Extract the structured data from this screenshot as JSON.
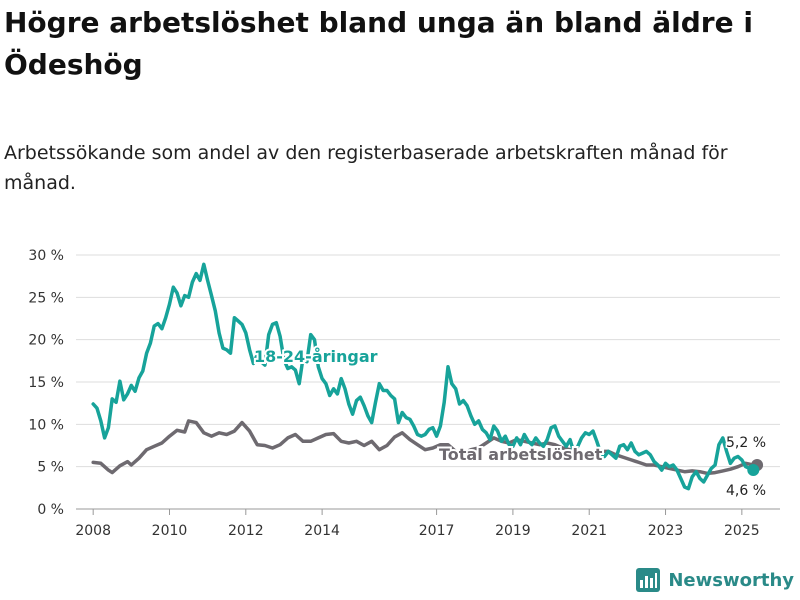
{
  "title": "Högre arbetslöshet bland unga än bland äldre i Ödeshög",
  "subtitle": "Arbetssökande som andel av den registerbaserade arbetskraften månad för månad.",
  "brand": {
    "name": "Newsworthy",
    "logo_icon": "bar-chart-icon",
    "color": "#2a8a88"
  },
  "chart_data": {
    "type": "line",
    "ylim": [
      0,
      30
    ],
    "y_ticks": [
      0,
      5,
      10,
      15,
      20,
      25,
      30
    ],
    "y_tick_labels": [
      "0 %",
      "5 %",
      "10 %",
      "15 %",
      "20 %",
      "25 %",
      "30 %"
    ],
    "x_ticks": [
      2008,
      2010,
      2012,
      2014,
      2017,
      2019,
      2021,
      2023,
      2025
    ],
    "x_tick_labels": [
      "2008",
      "2010",
      "2012",
      "2014",
      "2017",
      "2019",
      "2021",
      "2023",
      "2025"
    ],
    "grid": "horizontal",
    "series": [
      {
        "name": "Total arbetslöshet",
        "color": "#6e6a70",
        "end_label": "5,2 %",
        "points": [
          [
            2008.0,
            5.5
          ],
          [
            2008.2,
            5.4
          ],
          [
            2008.4,
            4.6
          ],
          [
            2008.5,
            4.3
          ],
          [
            2008.7,
            5.1
          ],
          [
            2008.9,
            5.6
          ],
          [
            2009.0,
            5.2
          ],
          [
            2009.2,
            6.0
          ],
          [
            2009.4,
            7.0
          ],
          [
            2009.6,
            7.4
          ],
          [
            2009.8,
            7.8
          ],
          [
            2010.0,
            8.6
          ],
          [
            2010.2,
            9.3
          ],
          [
            2010.4,
            9.1
          ],
          [
            2010.5,
            10.4
          ],
          [
            2010.7,
            10.2
          ],
          [
            2010.9,
            9.0
          ],
          [
            2011.1,
            8.6
          ],
          [
            2011.3,
            9.0
          ],
          [
            2011.5,
            8.8
          ],
          [
            2011.7,
            9.2
          ],
          [
            2011.9,
            10.2
          ],
          [
            2012.1,
            9.2
          ],
          [
            2012.3,
            7.6
          ],
          [
            2012.5,
            7.5
          ],
          [
            2012.7,
            7.2
          ],
          [
            2012.9,
            7.6
          ],
          [
            2013.1,
            8.4
          ],
          [
            2013.3,
            8.8
          ],
          [
            2013.5,
            8.0
          ],
          [
            2013.7,
            8.0
          ],
          [
            2013.9,
            8.4
          ],
          [
            2014.1,
            8.8
          ],
          [
            2014.3,
            8.9
          ],
          [
            2014.5,
            8.0
          ],
          [
            2014.7,
            7.8
          ],
          [
            2014.9,
            8.0
          ],
          [
            2015.1,
            7.5
          ],
          [
            2015.3,
            8.0
          ],
          [
            2015.5,
            7.0
          ],
          [
            2015.7,
            7.5
          ],
          [
            2015.9,
            8.5
          ],
          [
            2016.1,
            9.0
          ],
          [
            2016.3,
            8.2
          ],
          [
            2016.5,
            7.6
          ],
          [
            2016.7,
            7.0
          ],
          [
            2016.9,
            7.2
          ],
          [
            2017.1,
            7.6
          ],
          [
            2017.3,
            7.6
          ],
          [
            2017.5,
            6.8
          ],
          [
            2017.7,
            6.6
          ],
          [
            2017.9,
            7.0
          ],
          [
            2018.1,
            7.2
          ],
          [
            2018.3,
            7.8
          ],
          [
            2018.5,
            8.4
          ],
          [
            2018.7,
            8.0
          ],
          [
            2018.9,
            7.8
          ],
          [
            2019.1,
            8.2
          ],
          [
            2019.3,
            8.0
          ],
          [
            2019.5,
            7.8
          ],
          [
            2019.7,
            7.6
          ],
          [
            2019.9,
            7.8
          ],
          [
            2020.1,
            7.6
          ],
          [
            2020.3,
            7.2
          ],
          [
            2020.5,
            7.0
          ],
          [
            2020.7,
            6.6
          ],
          [
            2020.9,
            6.4
          ],
          [
            2021.1,
            6.5
          ],
          [
            2021.3,
            6.8
          ],
          [
            2021.5,
            6.8
          ],
          [
            2021.7,
            6.4
          ],
          [
            2021.9,
            6.1
          ],
          [
            2022.1,
            5.8
          ],
          [
            2022.3,
            5.5
          ],
          [
            2022.5,
            5.2
          ],
          [
            2022.7,
            5.2
          ],
          [
            2022.9,
            5.0
          ],
          [
            2023.1,
            4.8
          ],
          [
            2023.3,
            4.6
          ],
          [
            2023.5,
            4.4
          ],
          [
            2023.7,
            4.5
          ],
          [
            2023.9,
            4.4
          ],
          [
            2024.1,
            4.2
          ],
          [
            2024.3,
            4.3
          ],
          [
            2024.5,
            4.5
          ],
          [
            2024.7,
            4.7
          ],
          [
            2024.9,
            5.0
          ],
          [
            2025.1,
            5.4
          ],
          [
            2025.3,
            5.2
          ],
          [
            2025.4,
            5.2
          ]
        ]
      },
      {
        "name": "18-24-åringar",
        "color": "#17a39a",
        "end_label": "4,6 %",
        "points": [
          [
            2008.0,
            12.4
          ],
          [
            2008.1,
            11.9
          ],
          [
            2008.2,
            10.4
          ],
          [
            2008.3,
            8.4
          ],
          [
            2008.4,
            9.6
          ],
          [
            2008.5,
            13.0
          ],
          [
            2008.6,
            12.6
          ],
          [
            2008.7,
            15.1
          ],
          [
            2008.8,
            12.9
          ],
          [
            2008.9,
            13.6
          ],
          [
            2009.0,
            14.6
          ],
          [
            2009.1,
            13.9
          ],
          [
            2009.2,
            15.5
          ],
          [
            2009.3,
            16.3
          ],
          [
            2009.4,
            18.4
          ],
          [
            2009.5,
            19.6
          ],
          [
            2009.6,
            21.6
          ],
          [
            2009.7,
            21.9
          ],
          [
            2009.8,
            21.3
          ],
          [
            2009.9,
            22.6
          ],
          [
            2010.0,
            24.2
          ],
          [
            2010.1,
            26.2
          ],
          [
            2010.2,
            25.5
          ],
          [
            2010.3,
            24.0
          ],
          [
            2010.4,
            25.2
          ],
          [
            2010.5,
            25.0
          ],
          [
            2010.6,
            26.8
          ],
          [
            2010.7,
            27.8
          ],
          [
            2010.8,
            27.0
          ],
          [
            2010.9,
            28.9
          ],
          [
            2011.0,
            27.0
          ],
          [
            2011.1,
            25.2
          ],
          [
            2011.2,
            23.4
          ],
          [
            2011.3,
            20.8
          ],
          [
            2011.4,
            19.0
          ],
          [
            2011.5,
            18.8
          ],
          [
            2011.6,
            18.4
          ],
          [
            2011.7,
            22.6
          ],
          [
            2011.8,
            22.2
          ],
          [
            2011.9,
            21.8
          ],
          [
            2012.0,
            20.8
          ],
          [
            2012.1,
            18.8
          ],
          [
            2012.2,
            17.2
          ],
          [
            2012.3,
            18.2
          ],
          [
            2012.4,
            17.4
          ],
          [
            2012.5,
            17.0
          ],
          [
            2012.6,
            20.6
          ],
          [
            2012.7,
            21.8
          ],
          [
            2012.8,
            22.0
          ],
          [
            2012.9,
            20.4
          ],
          [
            2013.0,
            17.6
          ],
          [
            2013.1,
            16.6
          ],
          [
            2013.2,
            16.8
          ],
          [
            2013.3,
            16.4
          ],
          [
            2013.4,
            14.8
          ],
          [
            2013.5,
            17.8
          ],
          [
            2013.6,
            17.4
          ],
          [
            2013.7,
            20.6
          ],
          [
            2013.8,
            20.0
          ],
          [
            2013.9,
            16.8
          ],
          [
            2014.0,
            15.4
          ],
          [
            2014.1,
            14.8
          ],
          [
            2014.2,
            13.4
          ],
          [
            2014.3,
            14.2
          ],
          [
            2014.4,
            13.6
          ],
          [
            2014.5,
            15.4
          ],
          [
            2014.6,
            14.2
          ],
          [
            2014.7,
            12.4
          ],
          [
            2014.8,
            11.2
          ],
          [
            2014.9,
            12.8
          ],
          [
            2015.0,
            13.2
          ],
          [
            2015.1,
            12.2
          ],
          [
            2015.2,
            11.0
          ],
          [
            2015.3,
            10.2
          ],
          [
            2015.4,
            12.6
          ],
          [
            2015.5,
            14.8
          ],
          [
            2015.6,
            14.0
          ],
          [
            2015.7,
            14.0
          ],
          [
            2015.8,
            13.4
          ],
          [
            2015.9,
            13.0
          ],
          [
            2016.0,
            10.2
          ],
          [
            2016.1,
            11.4
          ],
          [
            2016.2,
            10.8
          ],
          [
            2016.3,
            10.6
          ],
          [
            2016.4,
            9.8
          ],
          [
            2016.5,
            8.8
          ],
          [
            2016.6,
            8.6
          ],
          [
            2016.7,
            8.8
          ],
          [
            2016.8,
            9.4
          ],
          [
            2016.9,
            9.6
          ],
          [
            2017.0,
            8.6
          ],
          [
            2017.1,
            9.8
          ],
          [
            2017.2,
            12.6
          ],
          [
            2017.3,
            16.8
          ],
          [
            2017.4,
            14.8
          ],
          [
            2017.5,
            14.2
          ],
          [
            2017.6,
            12.4
          ],
          [
            2017.7,
            12.8
          ],
          [
            2017.8,
            12.2
          ],
          [
            2017.9,
            11.0
          ],
          [
            2018.0,
            10.0
          ],
          [
            2018.1,
            10.4
          ],
          [
            2018.2,
            9.4
          ],
          [
            2018.3,
            9.0
          ],
          [
            2018.4,
            8.2
          ],
          [
            2018.5,
            9.8
          ],
          [
            2018.6,
            9.2
          ],
          [
            2018.7,
            8.0
          ],
          [
            2018.8,
            8.6
          ],
          [
            2018.9,
            7.6
          ],
          [
            2019.0,
            7.4
          ],
          [
            2019.1,
            8.4
          ],
          [
            2019.2,
            7.6
          ],
          [
            2019.3,
            8.8
          ],
          [
            2019.4,
            8.0
          ],
          [
            2019.5,
            7.6
          ],
          [
            2019.6,
            8.4
          ],
          [
            2019.7,
            7.8
          ],
          [
            2019.8,
            7.4
          ],
          [
            2019.9,
            8.2
          ],
          [
            2020.0,
            9.6
          ],
          [
            2020.1,
            9.8
          ],
          [
            2020.2,
            8.6
          ],
          [
            2020.3,
            8.0
          ],
          [
            2020.4,
            7.4
          ],
          [
            2020.5,
            8.2
          ],
          [
            2020.6,
            6.6
          ],
          [
            2020.7,
            7.4
          ],
          [
            2020.8,
            8.4
          ],
          [
            2020.9,
            9.0
          ],
          [
            2021.0,
            8.8
          ],
          [
            2021.1,
            9.2
          ],
          [
            2021.2,
            8.0
          ],
          [
            2021.3,
            6.6
          ],
          [
            2021.4,
            6.2
          ],
          [
            2021.5,
            6.8
          ],
          [
            2021.6,
            6.4
          ],
          [
            2021.7,
            6.0
          ],
          [
            2021.8,
            7.4
          ],
          [
            2021.9,
            7.6
          ],
          [
            2022.0,
            7.0
          ],
          [
            2022.1,
            7.8
          ],
          [
            2022.2,
            6.8
          ],
          [
            2022.3,
            6.4
          ],
          [
            2022.4,
            6.6
          ],
          [
            2022.5,
            6.8
          ],
          [
            2022.6,
            6.4
          ],
          [
            2022.7,
            5.6
          ],
          [
            2022.8,
            5.2
          ],
          [
            2022.9,
            4.6
          ],
          [
            2023.0,
            5.4
          ],
          [
            2023.1,
            5.0
          ],
          [
            2023.2,
            5.2
          ],
          [
            2023.3,
            4.6
          ],
          [
            2023.4,
            3.6
          ],
          [
            2023.5,
            2.6
          ],
          [
            2023.6,
            2.4
          ],
          [
            2023.7,
            3.8
          ],
          [
            2023.8,
            4.4
          ],
          [
            2023.9,
            3.6
          ],
          [
            2024.0,
            3.2
          ],
          [
            2024.1,
            4.0
          ],
          [
            2024.2,
            4.8
          ],
          [
            2024.3,
            5.2
          ],
          [
            2024.4,
            7.6
          ],
          [
            2024.5,
            8.4
          ],
          [
            2024.6,
            6.8
          ],
          [
            2024.7,
            5.4
          ],
          [
            2024.8,
            6.0
          ],
          [
            2024.9,
            6.2
          ],
          [
            2025.0,
            5.8
          ],
          [
            2025.1,
            5.0
          ],
          [
            2025.2,
            4.8
          ],
          [
            2025.3,
            4.6
          ]
        ]
      }
    ]
  }
}
